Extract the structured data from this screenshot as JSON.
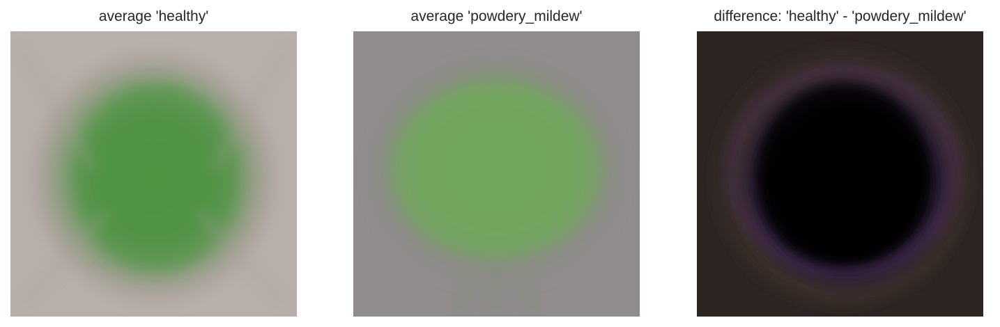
{
  "figure": {
    "panels": [
      {
        "title": "average 'healthy'",
        "image_description": "blurry average leaf image",
        "background_color": "#b7aca9",
        "leaf_color": "#4e9242"
      },
      {
        "title": "average 'powdery_mildew'",
        "image_description": "blurry average leaf image",
        "background_color": "#8d8a88",
        "leaf_color": "#6ea55a"
      },
      {
        "title": "difference: 'healthy' - 'powdery_mildew'",
        "image_description": "difference image",
        "background_color": "#2e2523",
        "leaf_color": "#030203"
      }
    ]
  }
}
